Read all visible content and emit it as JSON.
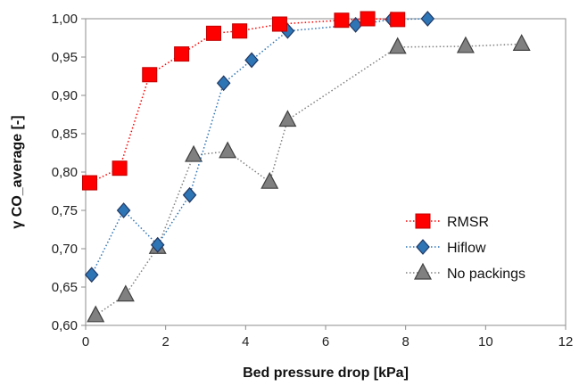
{
  "chart_data": {
    "type": "scatter",
    "title": "",
    "xlabel": "Bed pressure drop [kPa]",
    "ylabel": "γ CO_average [-]",
    "xlim": [
      0,
      12
    ],
    "ylim": [
      0.6,
      1.0
    ],
    "x_ticks": [
      "0",
      "2",
      "4",
      "6",
      "8",
      "10",
      "12"
    ],
    "y_ticks": [
      "0,60",
      "0,65",
      "0,70",
      "0,75",
      "0,80",
      "0,85",
      "0,90",
      "0,95",
      "1,00"
    ],
    "grid": false,
    "legend_position": "bottom-right",
    "series": [
      {
        "name": "RMSR",
        "marker": "square",
        "line": "dotted",
        "color": "#ff0000",
        "stroke": "#c00000",
        "x": [
          0.1,
          0.85,
          1.6,
          2.4,
          3.2,
          3.85,
          4.85,
          6.4,
          7.05,
          7.8
        ],
        "y": [
          0.786,
          0.805,
          0.927,
          0.954,
          0.981,
          0.984,
          0.993,
          0.998,
          1.0,
          0.999
        ]
      },
      {
        "name": "Hiflow",
        "marker": "diamond",
        "line": "dotted",
        "color": "#2e75b6",
        "stroke": "#1f3864",
        "x": [
          0.15,
          0.95,
          1.8,
          2.6,
          3.45,
          4.15,
          5.05,
          6.75,
          7.65,
          8.55
        ],
        "y": [
          0.666,
          0.75,
          0.705,
          0.77,
          0.916,
          0.946,
          0.984,
          0.992,
          0.999,
          1.0
        ]
      },
      {
        "name": "No packings",
        "marker": "triangle",
        "line": "dotted",
        "color": "#808080",
        "stroke": "#404040",
        "x": [
          0.25,
          1.0,
          1.8,
          2.7,
          3.55,
          4.6,
          5.05,
          7.8,
          9.5,
          10.9
        ],
        "y": [
          0.613,
          0.64,
          0.702,
          0.822,
          0.827,
          0.787,
          0.868,
          0.963,
          0.964,
          0.967
        ]
      }
    ]
  }
}
